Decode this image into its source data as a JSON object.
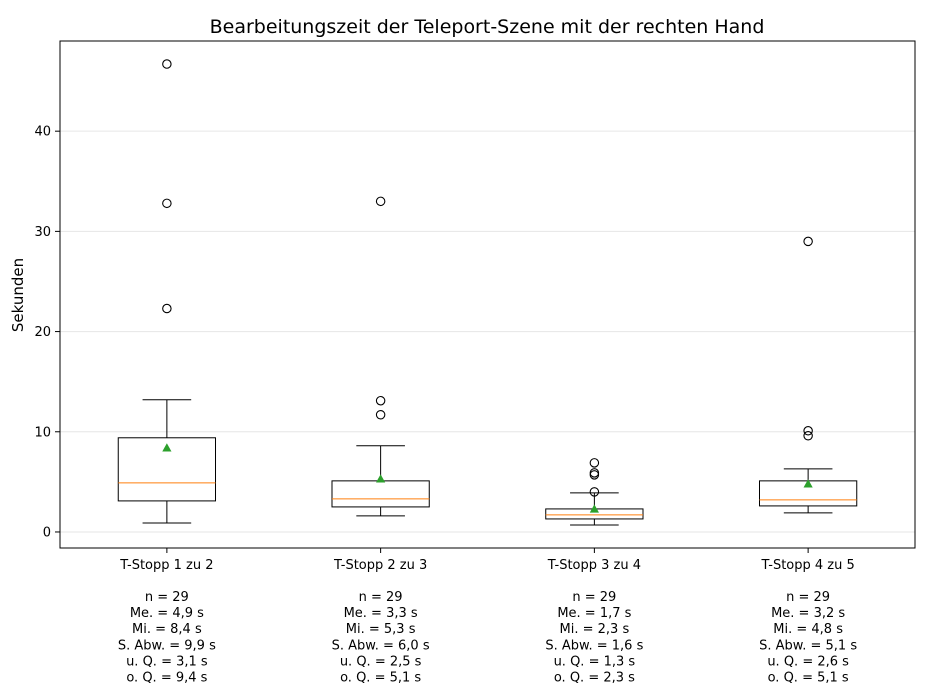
{
  "chart_data": {
    "type": "box",
    "title": "Bearbeitungszeit der Teleport-Szene mit der rechten Hand",
    "xlabel": "",
    "ylabel": "Sekunden",
    "ylim": [
      -1.6,
      49.0
    ],
    "yticks": [
      0,
      10,
      20,
      30,
      40
    ],
    "grid": "horizontal",
    "colors": {
      "box": "#000000",
      "median": "#ff7f0e",
      "mean_marker": "#2ca02c",
      "grid": "#e6e6e6",
      "background": "#ffffff"
    },
    "categories": [
      "T-Stopp 1 zu 2",
      "T-Stopp 2 zu 3",
      "T-Stopp 3 zu 4",
      "T-Stopp 4 zu 5"
    ],
    "boxes": [
      {
        "whisker_low": 0.9,
        "q1": 3.1,
        "median": 4.9,
        "q3": 9.4,
        "whisker_high": 13.2,
        "mean": 8.4,
        "outliers": [
          22.3,
          32.8,
          46.7
        ]
      },
      {
        "whisker_low": 1.6,
        "q1": 2.5,
        "median": 3.3,
        "q3": 5.1,
        "whisker_high": 8.6,
        "mean": 5.3,
        "outliers": [
          11.7,
          13.1,
          33.0
        ]
      },
      {
        "whisker_low": 0.7,
        "q1": 1.3,
        "median": 1.7,
        "q3": 2.3,
        "whisker_high": 3.9,
        "mean": 2.3,
        "outliers": [
          4.0,
          5.7,
          5.9,
          6.9
        ]
      },
      {
        "whisker_low": 1.9,
        "q1": 2.6,
        "median": 3.2,
        "q3": 5.1,
        "whisker_high": 6.3,
        "mean": 4.8,
        "outliers": [
          9.6,
          10.1,
          29.0
        ]
      }
    ],
    "stat_labels": [
      [
        "n = 29",
        "Me. = 4,9 s",
        "Mi. = 8,4 s",
        "S. Abw. = 9,9 s",
        "u. Q. = 3,1 s",
        "o. Q. = 9,4 s"
      ],
      [
        "n = 29",
        "Me. = 3,3 s",
        "Mi. = 5,3 s",
        "S. Abw. = 6,0 s",
        "u. Q. = 2,5 s",
        "o. Q. = 5,1 s"
      ],
      [
        "n = 29",
        "Me. = 1,7 s",
        "Mi. = 2,3 s",
        "S. Abw. = 1,6 s",
        "u. Q. = 1,3 s",
        "o. Q. = 2,3 s"
      ],
      [
        "n = 29",
        "Me. = 3,2 s",
        "Mi. = 4,8 s",
        "S. Abw. = 5,1 s",
        "u. Q. = 2,6 s",
        "o. Q. = 5,1 s"
      ]
    ]
  }
}
